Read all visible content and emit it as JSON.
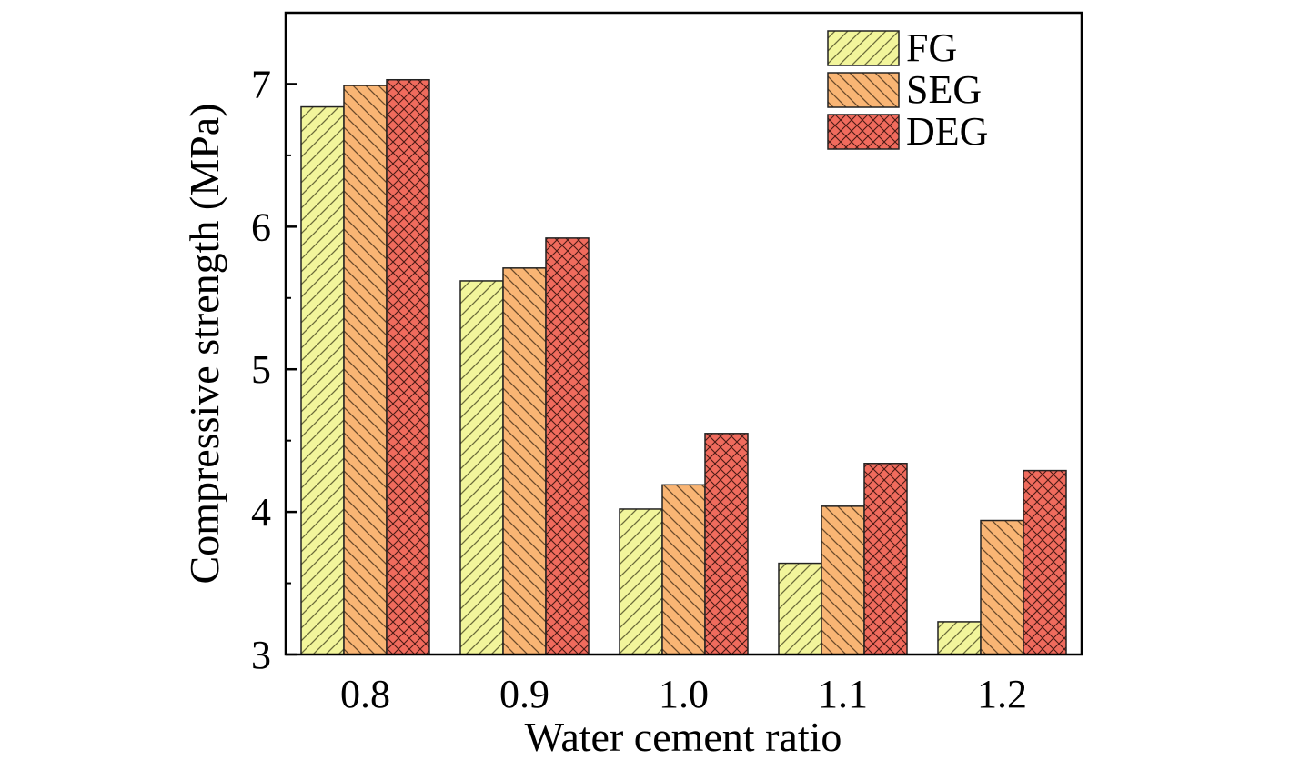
{
  "chart_data": {
    "type": "bar",
    "xlabel": "Water cement ratio",
    "ylabel": "Compressive strength (MPa)",
    "categories": [
      "0.8",
      "0.9",
      "1.0",
      "1.1",
      "1.2"
    ],
    "series": [
      {
        "name": "FG",
        "values": [
          6.84,
          5.62,
          4.02,
          3.64,
          3.23
        ],
        "color": "#f2f59b",
        "pattern": "forward-diagonal"
      },
      {
        "name": "SEG",
        "values": [
          6.99,
          5.71,
          4.19,
          4.04,
          3.94
        ],
        "color": "#f9b574",
        "pattern": "back-diagonal"
      },
      {
        "name": "DEG",
        "values": [
          7.03,
          5.92,
          4.55,
          4.34,
          4.29
        ],
        "color": "#f06b5d",
        "pattern": "crosshatch"
      }
    ],
    "ylim": [
      3,
      7.5
    ],
    "yticks": [
      "3",
      "4",
      "5",
      "6",
      "7"
    ],
    "legend_position": "top-right",
    "grid": false
  }
}
